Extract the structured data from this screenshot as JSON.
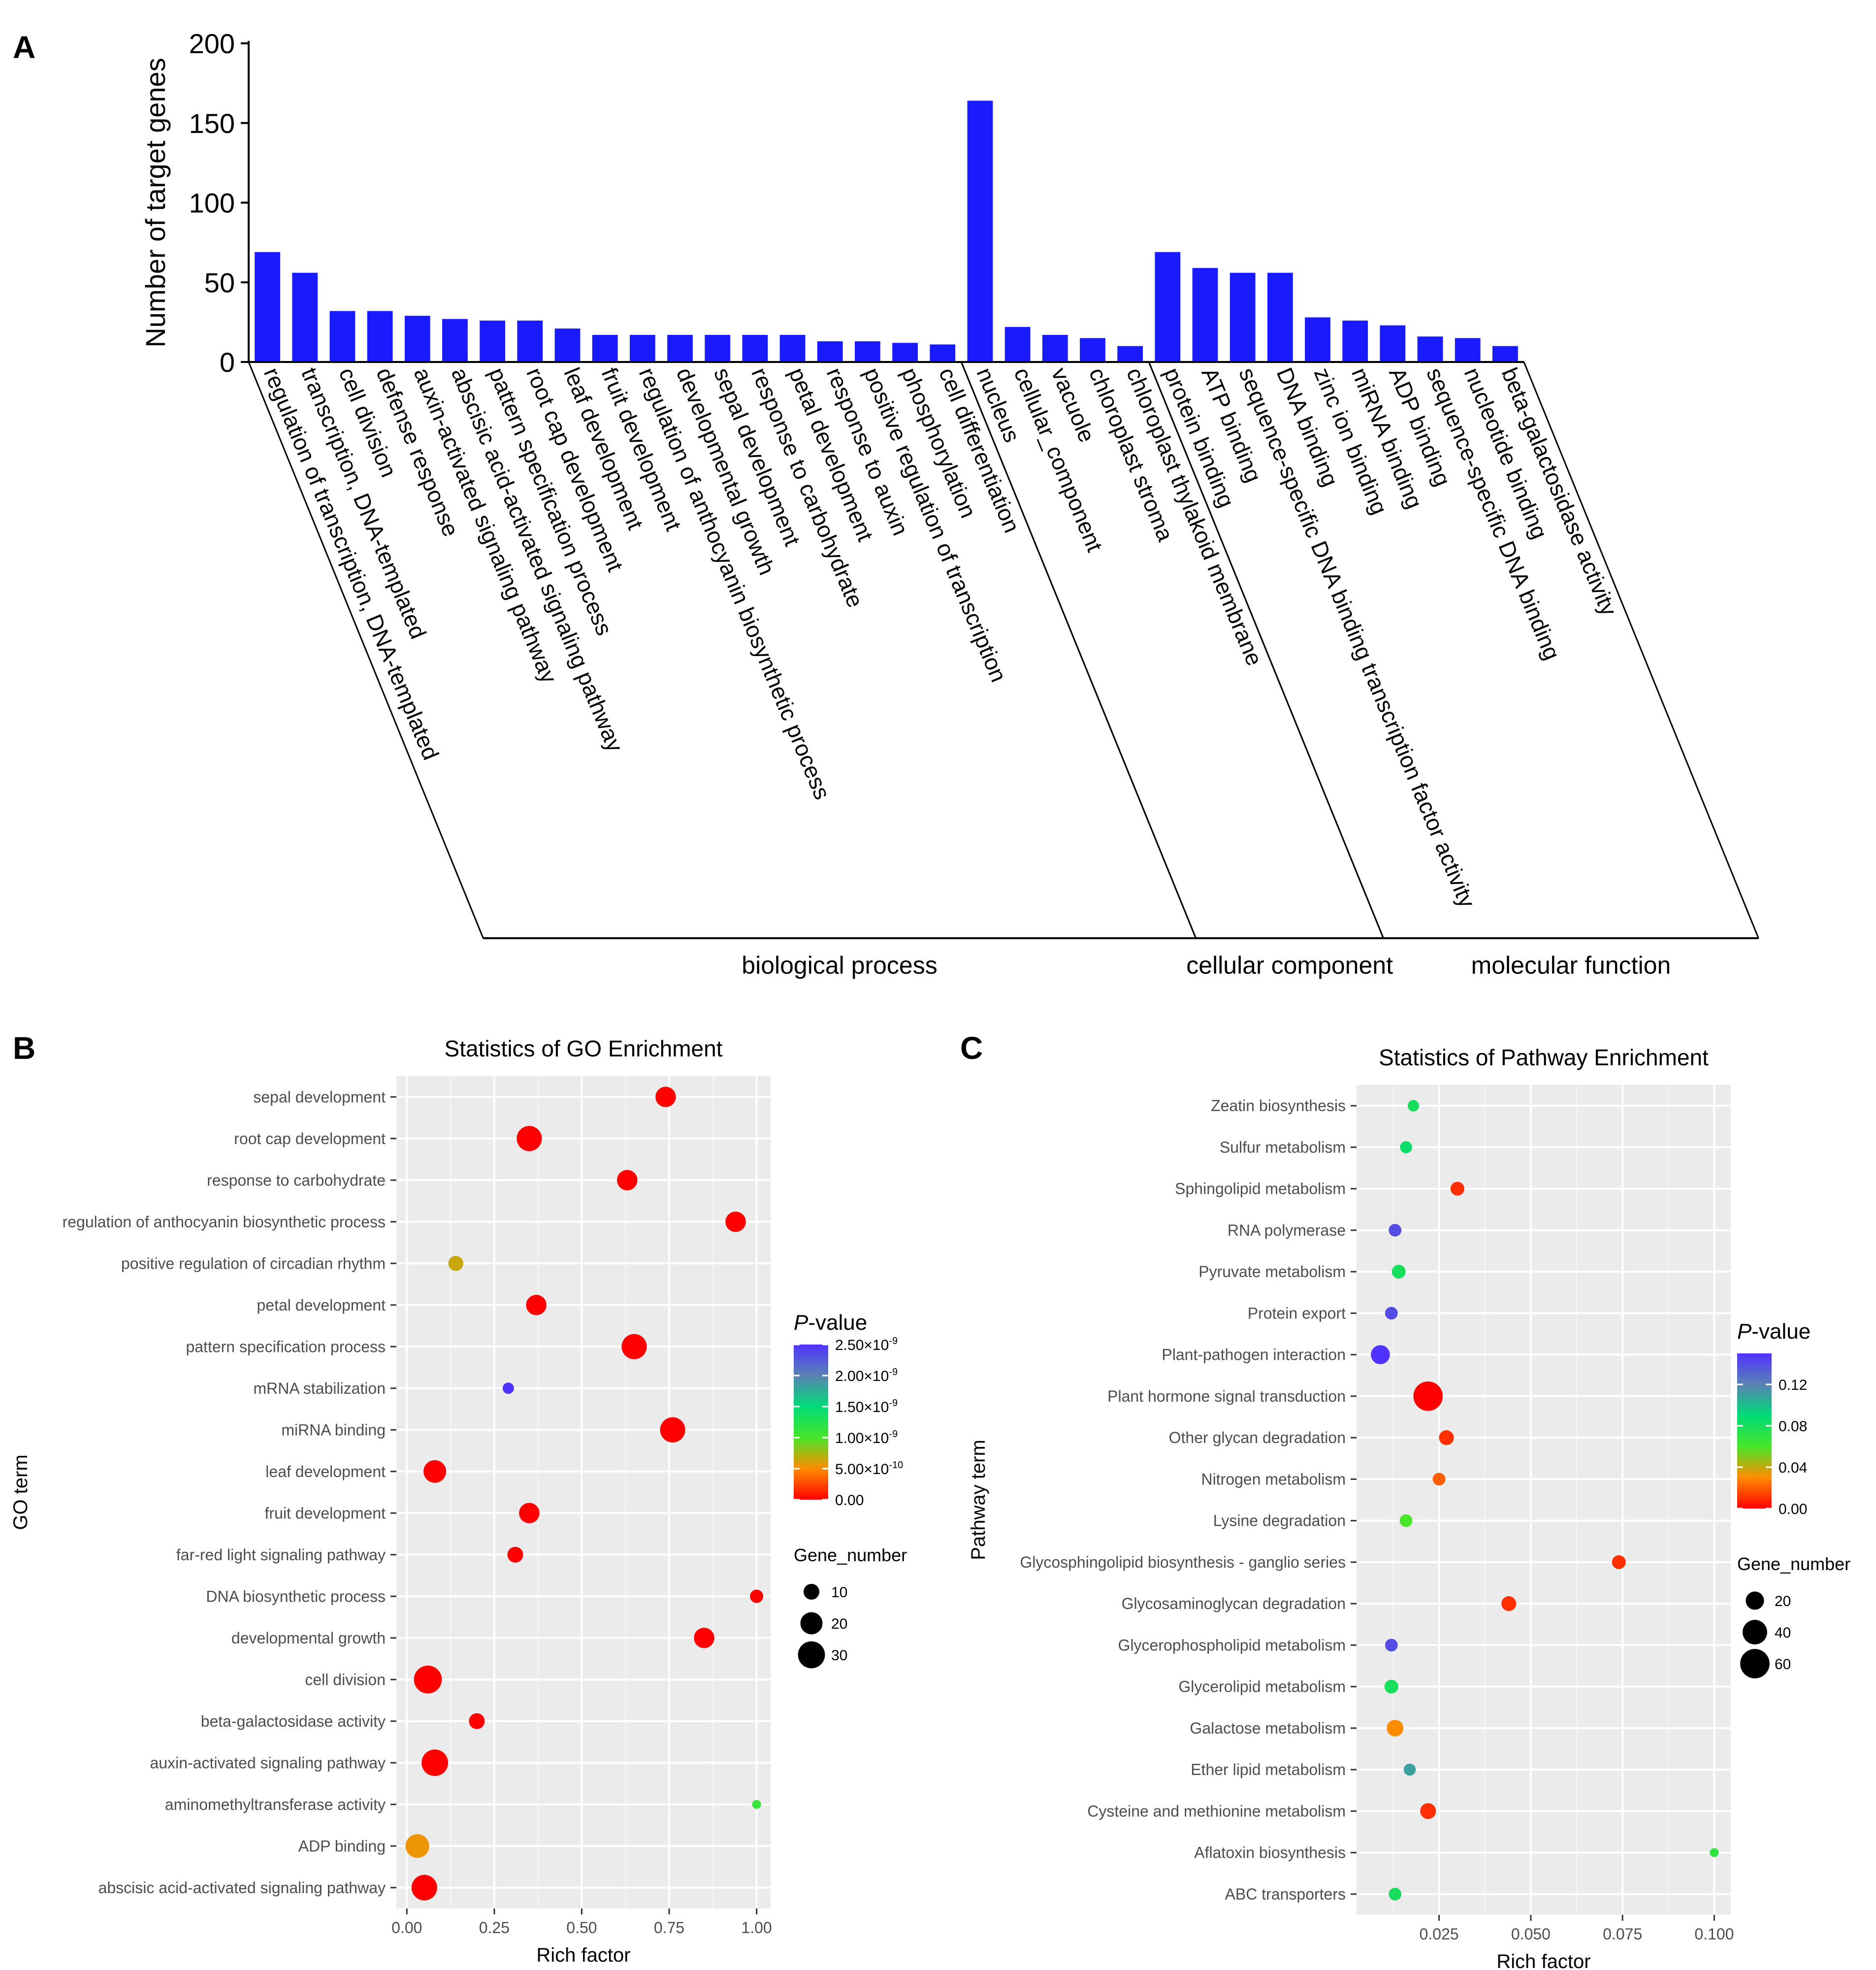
{
  "panels": {
    "a": {
      "label": "A"
    },
    "b": {
      "label": "B"
    },
    "c": {
      "label": "C"
    }
  },
  "chart_data": [
    {
      "id": "panelA",
      "type": "bar",
      "ylabel": "Number of target genes",
      "ylim": [
        0,
        200
      ],
      "yticks": [
        0,
        50,
        100,
        150,
        200
      ],
      "bar_color": "#1a1aff",
      "categories": [
        "regulation of transcription, DNA-templated",
        "transcription, DNA-templated",
        "cell division",
        "defense response",
        "auxin-activated signaling pathway",
        "abscisic acid-activated signaling pathway",
        "pattern specification process",
        "root cap development",
        "leaf development",
        "fruit development",
        "regulation of anthocyanin biosynthetic process",
        "developmental growth",
        "sepal development",
        "response to carbohydrate",
        "petal development",
        "response to auxin",
        "positive regulation of transcription",
        "phosphorylation",
        "cell differentiation",
        "nucleus",
        "cellular_component",
        "vacuole",
        "chloroplast stroma",
        "chloroplast thylakoid membrane",
        "protein binding",
        "ATP binding",
        "sequence-specific DNA binding transcription factor activity",
        "DNA binding",
        "zinc ion binding",
        "miRNA binding",
        "ADP binding",
        "sequence-specific DNA binding",
        "nucleotide binding",
        "beta-galactosidase activity"
      ],
      "values": [
        69,
        56,
        32,
        32,
        29,
        27,
        26,
        26,
        21,
        17,
        17,
        17,
        17,
        17,
        17,
        13,
        13,
        12,
        11,
        164,
        22,
        17,
        15,
        10,
        69,
        59,
        56,
        56,
        28,
        26,
        23,
        16,
        15,
        10
      ],
      "groups": [
        {
          "name": "biological process",
          "start": 0,
          "end": 18
        },
        {
          "name": "cellular component",
          "start": 19,
          "end": 23
        },
        {
          "name": "molecular function",
          "start": 24,
          "end": 33
        }
      ]
    },
    {
      "id": "panelB",
      "type": "scatter",
      "title": "Statistics of GO Enrichment",
      "xlabel": "Rich factor",
      "ylabel": "GO term",
      "xlim": [
        -0.03,
        1.04
      ],
      "xticks": [
        0,
        0.25,
        0.5,
        0.75,
        1
      ],
      "xtick_labels": [
        "0.00",
        "0.25",
        "0.50",
        "0.75",
        "1.00"
      ],
      "color_legend": {
        "title_italic": "P",
        "title_rest": "-value",
        "min": 0,
        "max": 2.5e-09,
        "ticks": [
          {
            "value": 2.5e-09,
            "mantissa": "2.50",
            "exp": "-9"
          },
          {
            "value": 2e-09,
            "mantissa": "2.00",
            "exp": "-9"
          },
          {
            "value": 1.5e-09,
            "mantissa": "1.50",
            "exp": "-9"
          },
          {
            "value": 1e-09,
            "mantissa": "1.00",
            "exp": "-9"
          },
          {
            "value": 5e-10,
            "mantissa": "5.00",
            "exp": "-10"
          },
          {
            "value": 0,
            "mantissa": "0.00",
            "exp": ""
          }
        ],
        "times": "×10"
      },
      "size_legend": {
        "title": "Gene_number",
        "values": [
          10,
          20,
          30
        ],
        "labels": [
          "10",
          "20",
          "30"
        ]
      },
      "size_domain": [
        3,
        36
      ],
      "points": [
        {
          "term": "sepal development",
          "x": 0.74,
          "genes": 17,
          "p": 0
        },
        {
          "term": "root cap development",
          "x": 0.35,
          "genes": 26,
          "p": 0
        },
        {
          "term": "response to carbohydrate",
          "x": 0.63,
          "genes": 17,
          "p": 0
        },
        {
          "term": "regulation of anthocyanin biosynthetic process",
          "x": 0.94,
          "genes": 17,
          "p": 0
        },
        {
          "term": "positive regulation of circadian rhythm",
          "x": 0.14,
          "genes": 9,
          "p": 6.5e-10
        },
        {
          "term": "petal development",
          "x": 0.37,
          "genes": 17,
          "p": 0
        },
        {
          "term": "pattern specification process",
          "x": 0.65,
          "genes": 26,
          "p": 0
        },
        {
          "term": "mRNA stabilization",
          "x": 0.29,
          "genes": 5,
          "p": 2.5e-09
        },
        {
          "term": "miRNA binding",
          "x": 0.76,
          "genes": 26,
          "p": 0
        },
        {
          "term": "leaf development",
          "x": 0.08,
          "genes": 21,
          "p": 0
        },
        {
          "term": "fruit development",
          "x": 0.35,
          "genes": 17,
          "p": 0
        },
        {
          "term": "far-red light signaling pathway",
          "x": 0.31,
          "genes": 10,
          "p": 0
        },
        {
          "term": "DNA biosynthetic process",
          "x": 1.0,
          "genes": 7,
          "p": 0
        },
        {
          "term": "developmental growth",
          "x": 0.85,
          "genes": 17,
          "p": 0
        },
        {
          "term": "cell division",
          "x": 0.06,
          "genes": 32,
          "p": 0
        },
        {
          "term": "beta-galactosidase activity",
          "x": 0.2,
          "genes": 10,
          "p": 0
        },
        {
          "term": "auxin-activated signaling pathway",
          "x": 0.08,
          "genes": 29,
          "p": 0
        },
        {
          "term": "aminomethyltransferase activity",
          "x": 1.0,
          "genes": 3,
          "p": 1.1e-09
        },
        {
          "term": "ADP binding",
          "x": 0.03,
          "genes": 23,
          "p": 5.5e-10
        },
        {
          "term": "abscisic acid-activated signaling pathway",
          "x": 0.05,
          "genes": 27,
          "p": 0
        }
      ]
    },
    {
      "id": "panelC",
      "type": "scatter",
      "title": "Statistics of Pathway Enrichment",
      "xlabel": "Rich factor",
      "ylabel": "Pathway term",
      "xlim": [
        0.0025,
        0.1045
      ],
      "xticks": [
        0.025,
        0.05,
        0.075,
        0.1
      ],
      "xtick_labels": [
        "0.025",
        "0.050",
        "0.075",
        "0.100"
      ],
      "color_legend": {
        "title_italic": "P",
        "title_rest": "-value",
        "min": 0,
        "max": 0.15,
        "ticks": [
          {
            "value": 0.12,
            "label": "0.12"
          },
          {
            "value": 0.08,
            "label": "0.08"
          },
          {
            "value": 0.04,
            "label": "0.04"
          },
          {
            "value": 0,
            "label": "0.00"
          }
        ]
      },
      "size_legend": {
        "title": "Gene_number",
        "values": [
          20,
          40,
          60
        ],
        "labels": [
          "20",
          "40",
          "60"
        ]
      },
      "size_domain": [
        2,
        70
      ],
      "points": [
        {
          "term": "Zeatin biosynthesis",
          "x": 0.018,
          "genes": 6,
          "p": 0.08
        },
        {
          "term": "Sulfur metabolism",
          "x": 0.016,
          "genes": 7,
          "p": 0.085
        },
        {
          "term": "Sphingolipid metabolism",
          "x": 0.03,
          "genes": 10,
          "p": 0.01
        },
        {
          "term": "RNA polymerase",
          "x": 0.013,
          "genes": 8,
          "p": 0.14
        },
        {
          "term": "Pyruvate metabolism",
          "x": 0.014,
          "genes": 10,
          "p": 0.08
        },
        {
          "term": "Protein export",
          "x": 0.012,
          "genes": 8,
          "p": 0.14
        },
        {
          "term": "Plant-pathogen interaction",
          "x": 0.009,
          "genes": 22,
          "p": 0.15
        },
        {
          "term": "Plant hormone signal transduction",
          "x": 0.022,
          "genes": 60,
          "p": 0.0
        },
        {
          "term": "Other glycan degradation",
          "x": 0.027,
          "genes": 12,
          "p": 0.01
        },
        {
          "term": "Nitrogen metabolism",
          "x": 0.025,
          "genes": 8,
          "p": 0.02
        },
        {
          "term": "Lysine degradation",
          "x": 0.016,
          "genes": 8,
          "p": 0.06
        },
        {
          "term": "Glycosphingolipid biosynthesis - ganglio series",
          "x": 0.074,
          "genes": 10,
          "p": 0.01
        },
        {
          "term": "Glycosaminoglycan degradation",
          "x": 0.044,
          "genes": 12,
          "p": 0.01
        },
        {
          "term": "Glycerophospholipid metabolism",
          "x": 0.012,
          "genes": 8,
          "p": 0.14
        },
        {
          "term": "Glycerolipid metabolism",
          "x": 0.012,
          "genes": 10,
          "p": 0.08
        },
        {
          "term": "Galactose metabolism",
          "x": 0.013,
          "genes": 16,
          "p": 0.03
        },
        {
          "term": "Ether lipid metabolism",
          "x": 0.017,
          "genes": 7,
          "p": 0.11
        },
        {
          "term": "Cysteine and methionine metabolism",
          "x": 0.022,
          "genes": 14,
          "p": 0.01
        },
        {
          "term": "Aflatoxin biosynthesis",
          "x": 0.1,
          "genes": 3,
          "p": 0.07
        },
        {
          "term": "ABC transporters",
          "x": 0.013,
          "genes": 8,
          "p": 0.08
        }
      ]
    }
  ]
}
